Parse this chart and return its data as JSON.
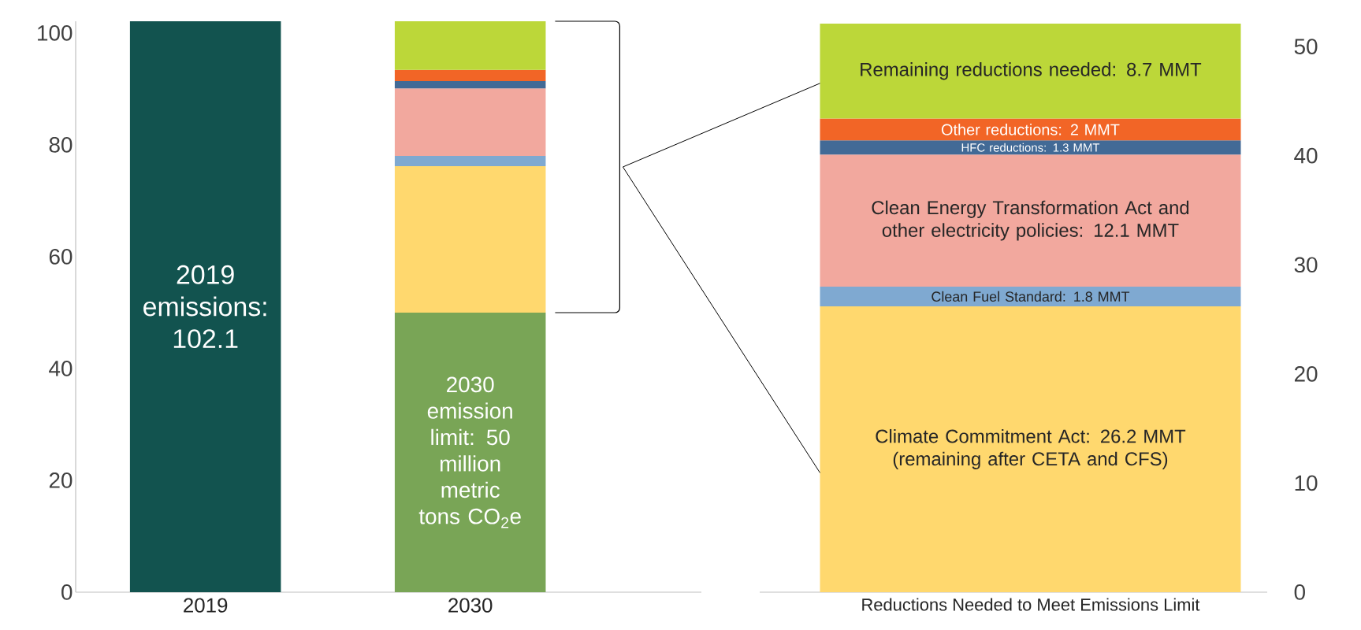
{
  "chart_data": [
    {
      "type": "bar",
      "stacked": true,
      "categories": [
        "2019",
        "2030"
      ],
      "ylim": [
        0,
        102.1
      ],
      "yticks": [
        0,
        20,
        40,
        60,
        80,
        100
      ],
      "series": [
        {
          "color": "#12534f",
          "values": [
            102.1,
            null
          ],
          "value_labels": [
            "2019 emissions: 102.1",
            null
          ]
        },
        {
          "color": "#79a556",
          "values": [
            null,
            50
          ]
        },
        {
          "color": "#ffd86e",
          "values": [
            null,
            26.2
          ]
        },
        {
          "color": "#7fa9d1",
          "values": [
            null,
            1.8
          ]
        },
        {
          "color": "#f2a89e",
          "values": [
            null,
            12.1
          ]
        },
        {
          "color": "#426a96",
          "values": [
            null,
            1.3
          ]
        },
        {
          "color": "#f26526",
          "values": [
            null,
            2
          ]
        },
        {
          "color": "#bcd739",
          "values": [
            null,
            8.7
          ]
        }
      ],
      "annotations": [
        "2030 emission limit: 50 million metric tons CO$_{2}$e"
      ]
    },
    {
      "type": "bar",
      "stacked": true,
      "categories": [
        "Reductions Needed to Meet Emissions Limit"
      ],
      "ylim": [
        0,
        52.1
      ],
      "yticks": [
        0,
        10,
        20,
        30,
        40,
        50
      ],
      "series": [
        {
          "color": "#ffd86e",
          "values": [
            26.2
          ],
          "value_labels": [
            "Climate Commitment Act: 26.2 MMT (remaining after CETA and CFS)"
          ]
        },
        {
          "color": "#7fa9d1",
          "values": [
            1.8
          ],
          "value_labels": [
            "Clean Fuel Standard: 1.8 MMT"
          ]
        },
        {
          "color": "#f2a89e",
          "values": [
            12.1
          ],
          "value_labels": [
            "Clean Energy Transformation Act and other electricity policies: 12.1 MMT"
          ]
        },
        {
          "color": "#426a96",
          "values": [
            1.3
          ],
          "value_labels": [
            "HFC reductions: 1.3 MMT"
          ]
        },
        {
          "color": "#f26526",
          "values": [
            2
          ],
          "value_labels": [
            "Other reductions: 2 MMT"
          ]
        },
        {
          "color": "#bcd739",
          "values": [
            8.7
          ],
          "value_labels": [
            "Remaining reductions needed: 8.7 MMT"
          ]
        }
      ]
    }
  ]
}
